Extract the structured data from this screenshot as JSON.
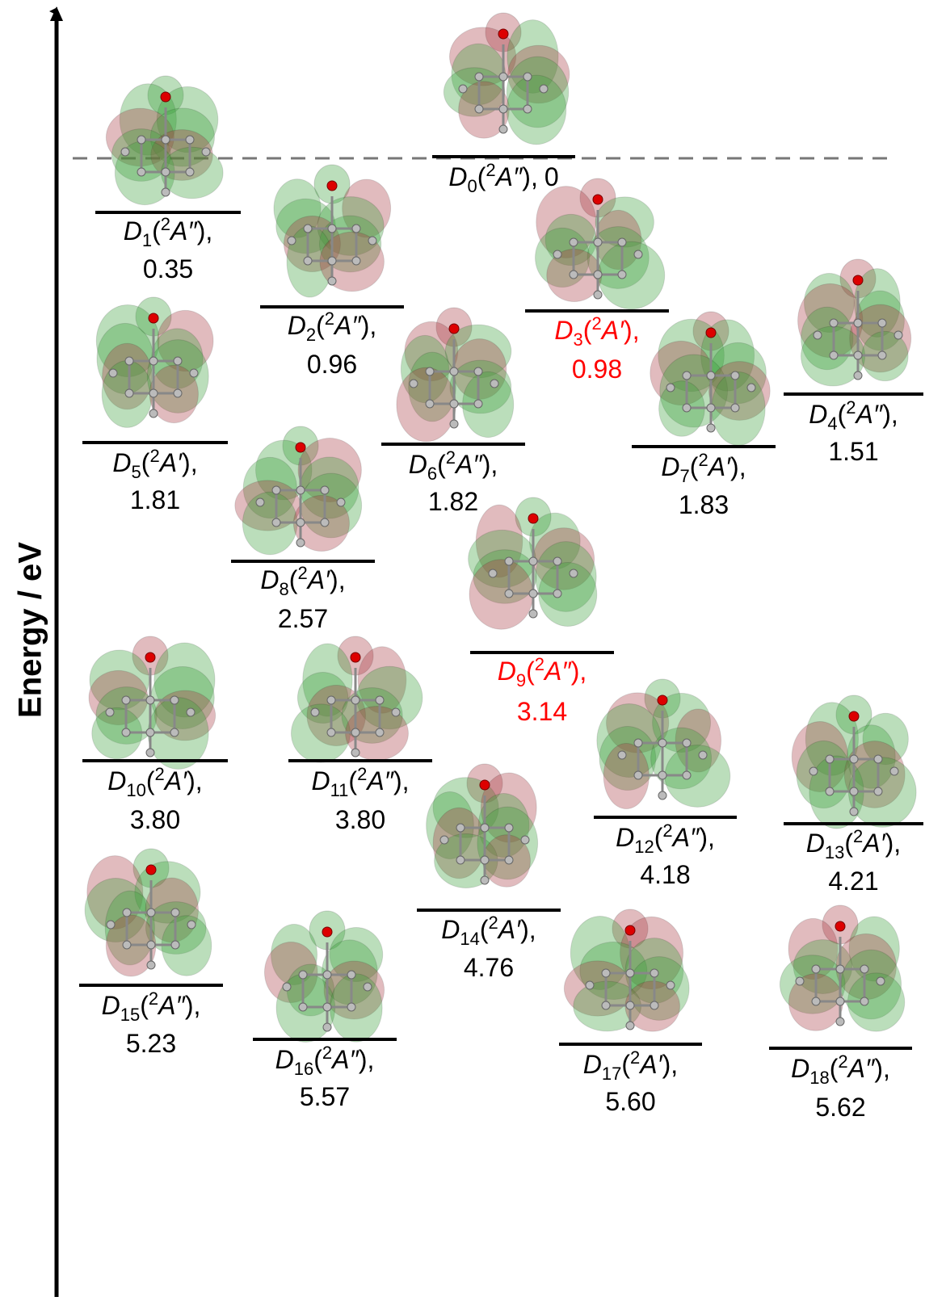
{
  "axis": {
    "label": "Energy / eV"
  },
  "states": [
    {
      "label": [
        {
          "text": "D",
          "style": "italic"
        },
        {
          "text": "0",
          "style": "sub"
        },
        {
          "text": "(",
          "style": "normal"
        },
        {
          "text": "2",
          "style": "sup"
        },
        {
          "text": "A″",
          "style": "italic"
        },
        {
          "text": "),",
          "style": "normal"
        }
      ],
      "energy": "0",
      "color": "#000000"
    },
    {
      "label": [
        {
          "text": "D",
          "style": "italic"
        },
        {
          "text": "1",
          "style": "sub"
        },
        {
          "text": "(",
          "style": "normal"
        },
        {
          "text": "2",
          "style": "sup"
        },
        {
          "text": "A″",
          "style": "italic"
        },
        {
          "text": "),",
          "style": "normal"
        }
      ],
      "energy": "0.35",
      "color": "#000000"
    },
    {
      "label": [
        {
          "text": "D",
          "style": "italic"
        },
        {
          "text": "2",
          "style": "sub"
        },
        {
          "text": "(",
          "style": "normal"
        },
        {
          "text": "2",
          "style": "sup"
        },
        {
          "text": "A″",
          "style": "italic"
        },
        {
          "text": "),",
          "style": "normal"
        }
      ],
      "energy": "0.96",
      "color": "#000000"
    },
    {
      "label": [
        {
          "text": "D",
          "style": "italic"
        },
        {
          "text": "3",
          "style": "sub"
        },
        {
          "text": "(",
          "style": "normal"
        },
        {
          "text": "2",
          "style": "sup"
        },
        {
          "text": "A′",
          "style": "italic"
        },
        {
          "text": "),",
          "style": "normal"
        }
      ],
      "energy": "0.98",
      "color": "#ff0000"
    },
    {
      "label": [
        {
          "text": "D",
          "style": "italic"
        },
        {
          "text": "4",
          "style": "sub"
        },
        {
          "text": "(",
          "style": "normal"
        },
        {
          "text": "2",
          "style": "sup"
        },
        {
          "text": "A″",
          "style": "italic"
        },
        {
          "text": "),",
          "style": "normal"
        }
      ],
      "energy": "1.51",
      "color": "#000000"
    },
    {
      "label": [
        {
          "text": "D",
          "style": "italic"
        },
        {
          "text": "5",
          "style": "sub"
        },
        {
          "text": "(",
          "style": "normal"
        },
        {
          "text": "2",
          "style": "sup"
        },
        {
          "text": "A′",
          "style": "italic"
        },
        {
          "text": "),",
          "style": "normal"
        }
      ],
      "energy": "1.81",
      "color": "#000000"
    },
    {
      "label": [
        {
          "text": "D",
          "style": "italic"
        },
        {
          "text": "6",
          "style": "sub"
        },
        {
          "text": "(",
          "style": "normal"
        },
        {
          "text": "2",
          "style": "sup"
        },
        {
          "text": "A″",
          "style": "italic"
        },
        {
          "text": "),",
          "style": "normal"
        }
      ],
      "energy": "1.82",
      "color": "#000000"
    },
    {
      "label": [
        {
          "text": "D",
          "style": "italic"
        },
        {
          "text": "7",
          "style": "sub"
        },
        {
          "text": "(",
          "style": "normal"
        },
        {
          "text": "2",
          "style": "sup"
        },
        {
          "text": "A′",
          "style": "italic"
        },
        {
          "text": "),",
          "style": "normal"
        }
      ],
      "energy": "1.83",
      "color": "#000000"
    },
    {
      "label": [
        {
          "text": "D",
          "style": "italic"
        },
        {
          "text": "8",
          "style": "sub"
        },
        {
          "text": "(",
          "style": "normal"
        },
        {
          "text": "2",
          "style": "sup"
        },
        {
          "text": "A′",
          "style": "italic"
        },
        {
          "text": "),",
          "style": "normal"
        }
      ],
      "energy": "2.57",
      "color": "#000000"
    },
    {
      "label": [
        {
          "text": "D",
          "style": "italic"
        },
        {
          "text": "9",
          "style": "sub"
        },
        {
          "text": "(",
          "style": "normal"
        },
        {
          "text": "2",
          "style": "sup"
        },
        {
          "text": "A″",
          "style": "italic"
        },
        {
          "text": "),",
          "style": "normal"
        }
      ],
      "energy": "3.14",
      "color": "#ff0000"
    },
    {
      "label": [
        {
          "text": "D",
          "style": "italic"
        },
        {
          "text": "10",
          "style": "sub"
        },
        {
          "text": "(",
          "style": "normal"
        },
        {
          "text": "2",
          "style": "sup"
        },
        {
          "text": "A′",
          "style": "italic"
        },
        {
          "text": "),",
          "style": "normal"
        }
      ],
      "energy": "3.80",
      "color": "#000000"
    },
    {
      "label": [
        {
          "text": "D",
          "style": "italic"
        },
        {
          "text": "11",
          "style": "sub"
        },
        {
          "text": "(",
          "style": "normal"
        },
        {
          "text": "2",
          "style": "sup"
        },
        {
          "text": "A″",
          "style": "italic"
        },
        {
          "text": "),",
          "style": "normal"
        }
      ],
      "energy": "3.80",
      "color": "#000000"
    },
    {
      "label": [
        {
          "text": "D",
          "style": "italic"
        },
        {
          "text": "12",
          "style": "sub"
        },
        {
          "text": "(",
          "style": "normal"
        },
        {
          "text": "2",
          "style": "sup"
        },
        {
          "text": "A″",
          "style": "italic"
        },
        {
          "text": "),",
          "style": "normal"
        }
      ],
      "energy": "4.18",
      "color": "#000000"
    },
    {
      "label": [
        {
          "text": "D",
          "style": "italic"
        },
        {
          "text": "13",
          "style": "sub"
        },
        {
          "text": "(",
          "style": "normal"
        },
        {
          "text": "2",
          "style": "sup"
        },
        {
          "text": "A′",
          "style": "italic"
        },
        {
          "text": "),",
          "style": "normal"
        }
      ],
      "energy": "4.21",
      "color": "#000000"
    },
    {
      "label": [
        {
          "text": "D",
          "style": "italic"
        },
        {
          "text": "14",
          "style": "sub"
        },
        {
          "text": "(",
          "style": "normal"
        },
        {
          "text": "2",
          "style": "sup"
        },
        {
          "text": "A′",
          "style": "italic"
        },
        {
          "text": "),",
          "style": "normal"
        }
      ],
      "energy": "4.76",
      "color": "#000000"
    },
    {
      "label": [
        {
          "text": "D",
          "style": "italic"
        },
        {
          "text": "15",
          "style": "sub"
        },
        {
          "text": "(",
          "style": "normal"
        },
        {
          "text": "2",
          "style": "sup"
        },
        {
          "text": "A″",
          "style": "italic"
        },
        {
          "text": "),",
          "style": "normal"
        }
      ],
      "energy": "5.23",
      "color": "#000000"
    },
    {
      "label": [
        {
          "text": "D",
          "style": "italic"
        },
        {
          "text": "16",
          "style": "sub"
        },
        {
          "text": "(",
          "style": "normal"
        },
        {
          "text": "2",
          "style": "sup"
        },
        {
          "text": "A″",
          "style": "italic"
        },
        {
          "text": "),",
          "style": "normal"
        }
      ],
      "energy": "5.57",
      "color": "#000000"
    },
    {
      "label": [
        {
          "text": "D",
          "style": "italic"
        },
        {
          "text": "17",
          "style": "sub"
        },
        {
          "text": "(",
          "style": "normal"
        },
        {
          "text": "2",
          "style": "sup"
        },
        {
          "text": "A′",
          "style": "italic"
        },
        {
          "text": "),",
          "style": "normal"
        }
      ],
      "energy": "5.60",
      "color": "#000000"
    },
    {
      "label": [
        {
          "text": "D",
          "style": "italic"
        },
        {
          "text": "18",
          "style": "sub"
        },
        {
          "text": "(",
          "style": "normal"
        },
        {
          "text": "2",
          "style": "sup"
        },
        {
          "text": "A″",
          "style": "italic"
        },
        {
          "text": "),",
          "style": "normal"
        }
      ],
      "energy": "5.62",
      "color": "#000000"
    }
  ]
}
